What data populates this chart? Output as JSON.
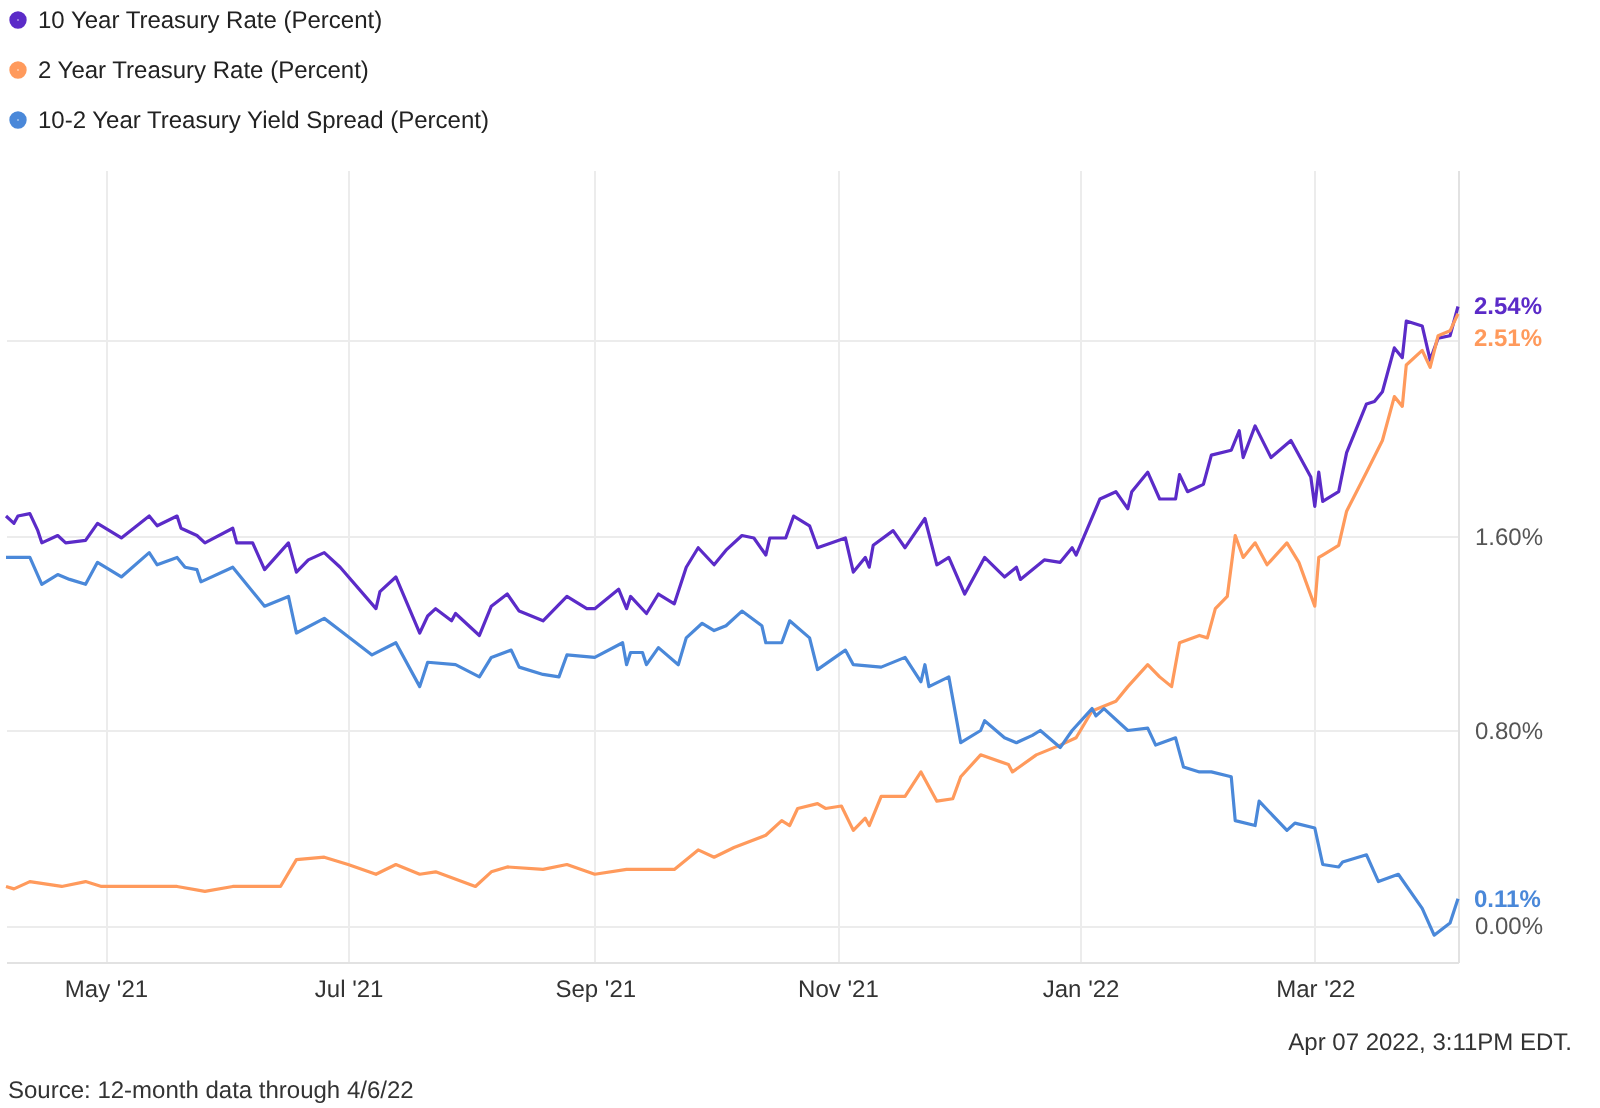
{
  "chart_data": {
    "type": "line",
    "legend": "top left",
    "grid": true,
    "marker": "none",
    "line_style": "solid",
    "xlim": [
      "2021-04-06",
      "2022-04-06"
    ],
    "xticks": [
      {
        "value": "2021-05-01",
        "label": "May '21"
      },
      {
        "value": "2021-07-01",
        "label": "Jul '21"
      },
      {
        "value": "2021-09-01",
        "label": "Sep '21"
      },
      {
        "value": "2021-11-01",
        "label": "Nov '21"
      },
      {
        "value": "2022-01-01",
        "label": "Jan '22"
      },
      {
        "value": "2022-03-01",
        "label": "Mar '22"
      }
    ],
    "ylim": [
      -0.15,
      3.1
    ],
    "yticks": [
      {
        "value": 0,
        "label": "0.00%"
      },
      {
        "value": 0.8,
        "label": "0.80%"
      },
      {
        "value": 1.6,
        "label": "1.60%"
      },
      {
        "value": 2.4,
        "label": null
      }
    ],
    "annotations": [
      "Apr 07 2022, 3:11PM EDT.",
      "Source: 12-month data through 4/6/22"
    ],
    "series": [
      {
        "name": "10 Year Treasury Rate (Percent)",
        "color": "#5b2bc8",
        "x": [
          "2021-04-06",
          "2021-04-08",
          "2021-04-09",
          "2021-04-12",
          "2021-04-14",
          "2021-04-15",
          "2021-04-19",
          "2021-04-21",
          "2021-04-26",
          "2021-04-29",
          "2021-05-05",
          "2021-05-12",
          "2021-05-14",
          "2021-05-19",
          "2021-05-20",
          "2021-05-24",
          "2021-05-26",
          "2021-06-02",
          "2021-06-03",
          "2021-06-07",
          "2021-06-10",
          "2021-06-16",
          "2021-06-18",
          "2021-06-21",
          "2021-06-25",
          "2021-06-29",
          "2021-07-08",
          "2021-07-09",
          "2021-07-13",
          "2021-07-19",
          "2021-07-21",
          "2021-07-23",
          "2021-07-27",
          "2021-07-28",
          "2021-08-03",
          "2021-08-06",
          "2021-08-10",
          "2021-08-13",
          "2021-08-19",
          "2021-08-25",
          "2021-08-30",
          "2021-09-01",
          "2021-09-07",
          "2021-09-09",
          "2021-09-10",
          "2021-09-14",
          "2021-09-17",
          "2021-09-21",
          "2021-09-24",
          "2021-09-27",
          "2021-10-01",
          "2021-10-04",
          "2021-10-08",
          "2021-10-11",
          "2021-10-14",
          "2021-10-15",
          "2021-10-19",
          "2021-10-21",
          "2021-10-25",
          "2021-10-27",
          "2021-11-03",
          "2021-11-05",
          "2021-11-08",
          "2021-11-09",
          "2021-11-10",
          "2021-11-15",
          "2021-11-18",
          "2021-11-23",
          "2021-11-26",
          "2021-11-29",
          "2021-12-03",
          "2021-12-08",
          "2021-12-13",
          "2021-12-16",
          "2021-12-17",
          "2021-12-23",
          "2021-12-27",
          "2021-12-30",
          "2021-12-31",
          "2022-01-06",
          "2022-01-10",
          "2022-01-13",
          "2022-01-14",
          "2022-01-18",
          "2022-01-21",
          "2022-01-25",
          "2022-01-26",
          "2022-01-28",
          "2022-02-01",
          "2022-02-03",
          "2022-02-08",
          "2022-02-10",
          "2022-02-11",
          "2022-02-14",
          "2022-02-18",
          "2022-02-23",
          "2022-02-24",
          "2022-02-28",
          "2022-03-01",
          "2022-03-02",
          "2022-03-03",
          "2022-03-07",
          "2022-03-09",
          "2022-03-14",
          "2022-03-16",
          "2022-03-18",
          "2022-03-21",
          "2022-03-23",
          "2022-03-24",
          "2022-03-28",
          "2022-03-30",
          "2022-04-01",
          "2022-04-04",
          "2022-04-06"
        ],
        "values": [
          1.68,
          1.65,
          1.68,
          1.69,
          1.62,
          1.57,
          1.6,
          1.57,
          1.58,
          1.65,
          1.59,
          1.68,
          1.64,
          1.68,
          1.63,
          1.6,
          1.57,
          1.63,
          1.57,
          1.57,
          1.46,
          1.57,
          1.45,
          1.5,
          1.53,
          1.47,
          1.3,
          1.37,
          1.43,
          1.2,
          1.27,
          1.3,
          1.25,
          1.28,
          1.19,
          1.31,
          1.36,
          1.29,
          1.25,
          1.35,
          1.3,
          1.3,
          1.38,
          1.3,
          1.35,
          1.28,
          1.36,
          1.32,
          1.47,
          1.55,
          1.48,
          1.54,
          1.6,
          1.59,
          1.52,
          1.59,
          1.59,
          1.68,
          1.64,
          1.55,
          1.59,
          1.45,
          1.51,
          1.47,
          1.56,
          1.62,
          1.55,
          1.67,
          1.48,
          1.51,
          1.36,
          1.51,
          1.43,
          1.47,
          1.42,
          1.5,
          1.49,
          1.55,
          1.52,
          1.75,
          1.78,
          1.71,
          1.78,
          1.86,
          1.75,
          1.75,
          1.85,
          1.78,
          1.81,
          1.93,
          1.95,
          2.03,
          1.92,
          2.05,
          1.92,
          1.99,
          1.96,
          1.84,
          1.72,
          1.86,
          1.74,
          1.78,
          1.94,
          2.14,
          2.15,
          2.19,
          2.37,
          2.33,
          2.48,
          2.46,
          2.32,
          2.41,
          2.42,
          2.54
        ],
        "value_labels": [
          null,
          null,
          null,
          null,
          null,
          null,
          null,
          null,
          null,
          null,
          null,
          null,
          null,
          null,
          null,
          null,
          null,
          null,
          null,
          null,
          null,
          null,
          null,
          null,
          null,
          null,
          null,
          null,
          null,
          null,
          null,
          null,
          null,
          null,
          null,
          null,
          null,
          null,
          null,
          null,
          null,
          null,
          null,
          null,
          null,
          null,
          null,
          null,
          null,
          null,
          null,
          null,
          null,
          null,
          null,
          null,
          null,
          null,
          null,
          null,
          null,
          null,
          null,
          null,
          null,
          null,
          null,
          null,
          null,
          null,
          null,
          null,
          null,
          null,
          null,
          null,
          null,
          null,
          null,
          null,
          null,
          null,
          null,
          null,
          null,
          null,
          null,
          null,
          null,
          null,
          null,
          null,
          null,
          null,
          null,
          null,
          null,
          null,
          null,
          null,
          null,
          null,
          null,
          null,
          null,
          null,
          null,
          null,
          null,
          null,
          null,
          null,
          null,
          "2.54%"
        ]
      },
      {
        "name": "2 Year Treasury Rate (Percent)",
        "color": "#ff9a5c",
        "x": [
          "2021-04-06",
          "2021-04-08",
          "2021-04-12",
          "2021-04-20",
          "2021-04-26",
          "2021-04-30",
          "2021-05-06",
          "2021-05-19",
          "2021-05-26",
          "2021-06-02",
          "2021-06-10",
          "2021-06-14",
          "2021-06-18",
          "2021-06-25",
          "2021-07-01",
          "2021-07-08",
          "2021-07-13",
          "2021-07-19",
          "2021-07-23",
          "2021-08-02",
          "2021-08-06",
          "2021-08-10",
          "2021-08-19",
          "2021-08-25",
          "2021-09-01",
          "2021-09-09",
          "2021-09-16",
          "2021-09-21",
          "2021-09-27",
          "2021-10-01",
          "2021-10-06",
          "2021-10-14",
          "2021-10-18",
          "2021-10-20",
          "2021-10-22",
          "2021-10-27",
          "2021-10-29",
          "2021-11-02",
          "2021-11-05",
          "2021-11-08",
          "2021-11-09",
          "2021-11-12",
          "2021-11-18",
          "2021-11-22",
          "2021-11-26",
          "2021-11-30",
          "2021-12-02",
          "2021-12-07",
          "2021-12-14",
          "2021-12-15",
          "2021-12-21",
          "2021-12-27",
          "2021-12-31",
          "2022-01-04",
          "2022-01-10",
          "2022-01-13",
          "2022-01-18",
          "2022-01-21",
          "2022-01-24",
          "2022-01-26",
          "2022-01-31",
          "2022-02-02",
          "2022-02-04",
          "2022-02-07",
          "2022-02-09",
          "2022-02-11",
          "2022-02-14",
          "2022-02-17",
          "2022-02-22",
          "2022-02-25",
          "2022-03-01",
          "2022-03-02",
          "2022-03-03",
          "2022-03-07",
          "2022-03-09",
          "2022-03-14",
          "2022-03-18",
          "2022-03-21",
          "2022-03-23",
          "2022-03-24",
          "2022-03-28",
          "2022-03-30",
          "2022-04-01",
          "2022-04-04",
          "2022-04-06"
        ],
        "values": [
          0.16,
          0.15,
          0.18,
          0.16,
          0.18,
          0.16,
          0.16,
          0.16,
          0.14,
          0.16,
          0.16,
          0.16,
          0.27,
          0.28,
          0.25,
          0.21,
          0.25,
          0.21,
          0.22,
          0.16,
          0.22,
          0.24,
          0.23,
          0.25,
          0.21,
          0.23,
          0.23,
          0.23,
          0.31,
          0.28,
          0.32,
          0.37,
          0.43,
          0.41,
          0.48,
          0.5,
          0.48,
          0.49,
          0.39,
          0.44,
          0.41,
          0.53,
          0.53,
          0.63,
          0.51,
          0.52,
          0.61,
          0.7,
          0.66,
          0.63,
          0.7,
          0.74,
          0.77,
          0.88,
          0.92,
          0.98,
          1.07,
          1.02,
          0.98,
          1.16,
          1.19,
          1.18,
          1.3,
          1.35,
          1.6,
          1.51,
          1.57,
          1.48,
          1.57,
          1.49,
          1.31,
          1.51,
          1.52,
          1.56,
          1.7,
          1.86,
          1.99,
          2.17,
          2.13,
          2.3,
          2.36,
          2.29,
          2.42,
          2.44,
          2.51
        ],
        "value_labels": [
          null,
          null,
          null,
          null,
          null,
          null,
          null,
          null,
          null,
          null,
          null,
          null,
          null,
          null,
          null,
          null,
          null,
          null,
          null,
          null,
          null,
          null,
          null,
          null,
          null,
          null,
          null,
          null,
          null,
          null,
          null,
          null,
          null,
          null,
          null,
          null,
          null,
          null,
          null,
          null,
          null,
          null,
          null,
          null,
          null,
          null,
          null,
          null,
          null,
          null,
          null,
          null,
          null,
          null,
          null,
          null,
          null,
          null,
          null,
          null,
          null,
          null,
          null,
          null,
          null,
          null,
          null,
          null,
          null,
          null,
          null,
          null,
          null,
          null,
          null,
          null,
          null,
          null,
          null,
          null,
          null,
          null,
          null,
          null,
          "2.51%"
        ]
      },
      {
        "name": "10-2 Year Treasury Yield Spread (Percent)",
        "color": "#4a88d9",
        "x": [
          "2021-04-06",
          "2021-04-08",
          "2021-04-12",
          "2021-04-15",
          "2021-04-19",
          "2021-04-22",
          "2021-04-26",
          "2021-04-29",
          "2021-05-05",
          "2021-05-12",
          "2021-05-14",
          "2021-05-19",
          "2021-05-21",
          "2021-05-24",
          "2021-05-25",
          "2021-06-02",
          "2021-06-10",
          "2021-06-16",
          "2021-06-18",
          "2021-06-25",
          "2021-06-29",
          "2021-07-07",
          "2021-07-13",
          "2021-07-19",
          "2021-07-21",
          "2021-07-28",
          "2021-08-03",
          "2021-08-06",
          "2021-08-11",
          "2021-08-13",
          "2021-08-19",
          "2021-08-23",
          "2021-08-25",
          "2021-09-01",
          "2021-09-08",
          "2021-09-09",
          "2021-09-10",
          "2021-09-13",
          "2021-09-14",
          "2021-09-17",
          "2021-09-22",
          "2021-09-24",
          "2021-09-28",
          "2021-10-01",
          "2021-10-04",
          "2021-10-08",
          "2021-10-13",
          "2021-10-14",
          "2021-10-18",
          "2021-10-20",
          "2021-10-25",
          "2021-10-27",
          "2021-11-03",
          "2021-11-05",
          "2021-11-12",
          "2021-11-18",
          "2021-11-22",
          "2021-11-23",
          "2021-11-24",
          "2021-11-29",
          "2021-12-02",
          "2021-12-07",
          "2021-12-08",
          "2021-12-13",
          "2021-12-16",
          "2021-12-20",
          "2021-12-22",
          "2021-12-27",
          "2021-12-30",
          "2022-01-04",
          "2022-01-05",
          "2022-01-07",
          "2022-01-13",
          "2022-01-18",
          "2022-01-20",
          "2022-01-25",
          "2022-01-27",
          "2022-01-31",
          "2022-02-03",
          "2022-02-08",
          "2022-02-09",
          "2022-02-14",
          "2022-02-15",
          "2022-02-22",
          "2022-02-24",
          "2022-03-01",
          "2022-03-03",
          "2022-03-07",
          "2022-03-08",
          "2022-03-14",
          "2022-03-17",
          "2022-03-22",
          "2022-03-28",
          "2022-03-31",
          "2022-04-04",
          "2022-04-06"
        ],
        "values": [
          1.51,
          1.51,
          1.51,
          1.4,
          1.44,
          1.42,
          1.4,
          1.49,
          1.43,
          1.53,
          1.48,
          1.51,
          1.47,
          1.46,
          1.41,
          1.47,
          1.31,
          1.35,
          1.2,
          1.26,
          1.21,
          1.11,
          1.16,
          0.98,
          1.08,
          1.07,
          1.02,
          1.1,
          1.13,
          1.06,
          1.03,
          1.02,
          1.11,
          1.1,
          1.16,
          1.07,
          1.12,
          1.12,
          1.07,
          1.14,
          1.07,
          1.18,
          1.24,
          1.21,
          1.23,
          1.29,
          1.23,
          1.16,
          1.16,
          1.25,
          1.18,
          1.05,
          1.13,
          1.07,
          1.06,
          1.1,
          1.0,
          1.07,
          0.98,
          1.02,
          0.75,
          0.8,
          0.84,
          0.77,
          0.75,
          0.78,
          0.8,
          0.73,
          0.8,
          0.89,
          0.86,
          0.89,
          0.8,
          0.81,
          0.74,
          0.77,
          0.65,
          0.63,
          0.63,
          0.61,
          0.43,
          0.41,
          0.51,
          0.39,
          0.42,
          0.4,
          0.25,
          0.24,
          0.26,
          0.29,
          0.18,
          0.21,
          0.07,
          -0.04,
          0.01,
          0.11
        ],
        "value_labels": [
          null,
          null,
          null,
          null,
          null,
          null,
          null,
          null,
          null,
          null,
          null,
          null,
          null,
          null,
          null,
          null,
          null,
          null,
          null,
          null,
          null,
          null,
          null,
          null,
          null,
          null,
          null,
          null,
          null,
          null,
          null,
          null,
          null,
          null,
          null,
          null,
          null,
          null,
          null,
          null,
          null,
          null,
          null,
          null,
          null,
          null,
          null,
          null,
          null,
          null,
          null,
          null,
          null,
          null,
          null,
          null,
          null,
          null,
          null,
          null,
          null,
          null,
          null,
          null,
          null,
          null,
          null,
          null,
          null,
          null,
          null,
          null,
          null,
          null,
          null,
          null,
          null,
          null,
          null,
          null,
          null,
          null,
          null,
          null,
          null,
          null,
          null,
          null,
          null,
          null,
          null,
          null,
          null,
          null,
          null,
          "0.11%"
        ]
      }
    ]
  }
}
